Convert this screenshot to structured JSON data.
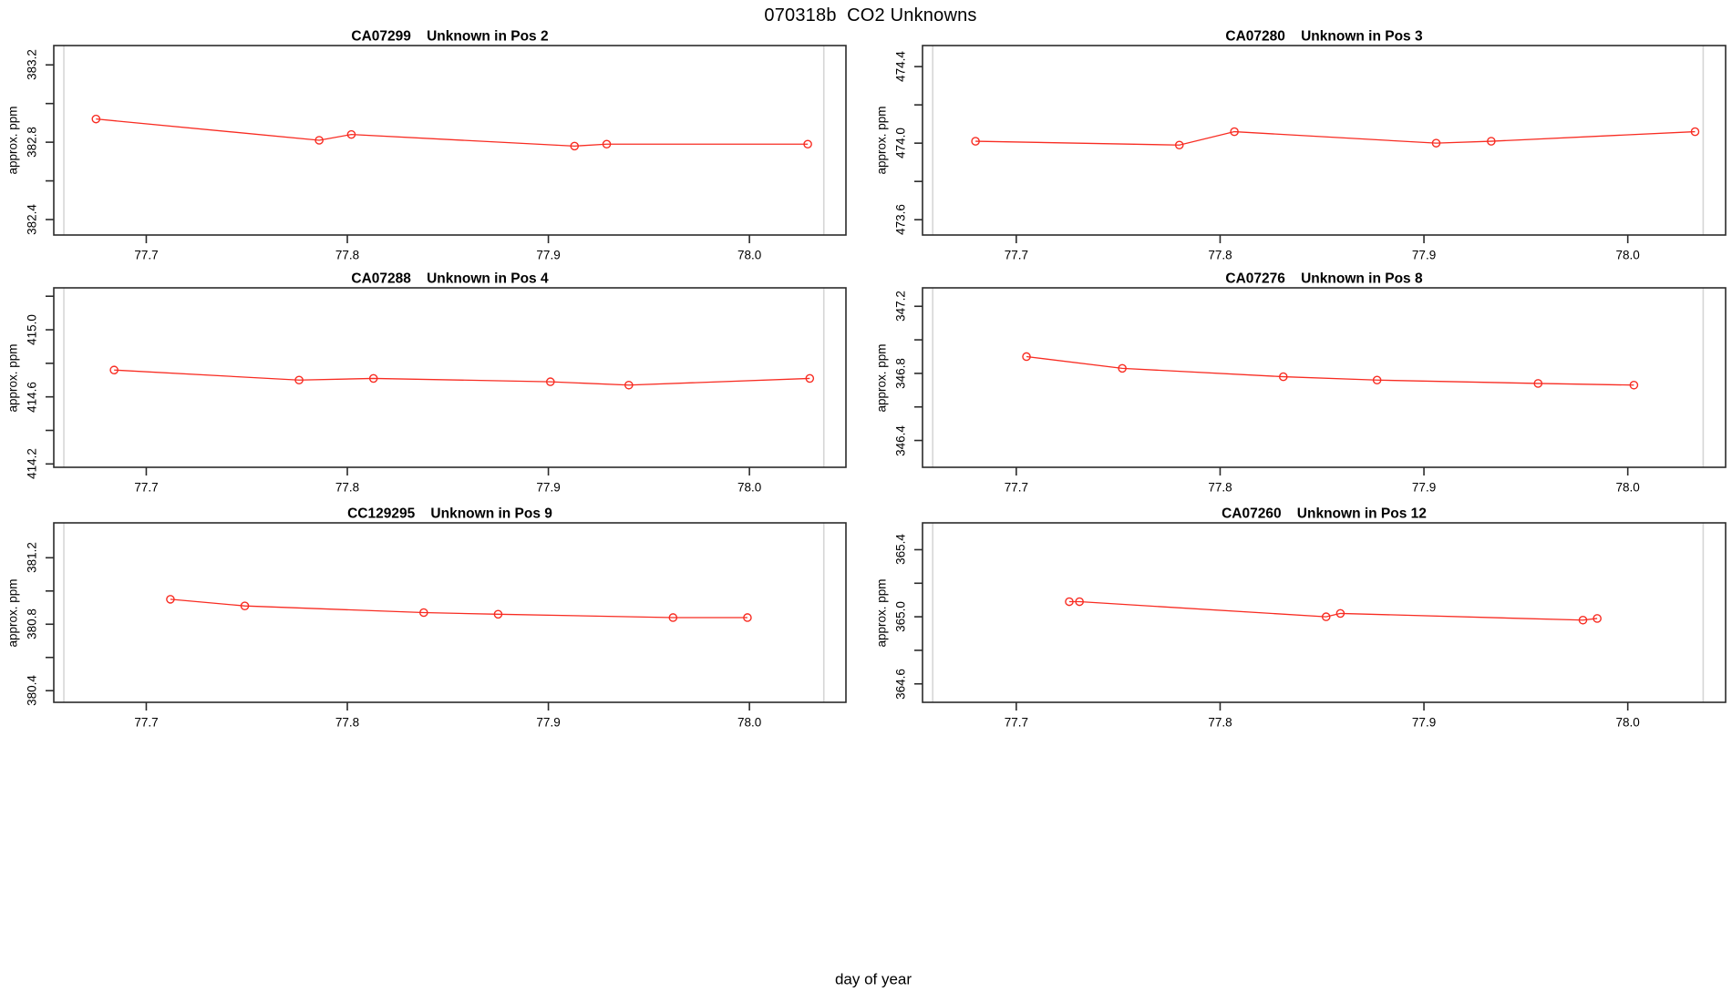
{
  "figure": {
    "title": "070318b  CO2 Unknowns",
    "xlabel": "day of year",
    "ylabel": "approx. ppm"
  },
  "style": {
    "series_color": "#f82c22",
    "guide_color": "#d6d6d6",
    "axis_color": "#2b2b2b",
    "text_color": "#000000",
    "background": "#ffffff"
  },
  "chart_data": {
    "type": "line",
    "title": "070318b  CO2 Unknowns",
    "xlabel": "day of year",
    "ylabel": "approx. ppm",
    "grid": false,
    "legend": "none",
    "marker": "open-circle",
    "xlim": [
      77.654,
      78.048
    ],
    "xticks": [
      77.7,
      77.8,
      77.9,
      78.0
    ],
    "xtick_labels": [
      "77.7",
      "77.8",
      "77.9",
      "78.0"
    ],
    "guide_x": [
      77.659,
      78.037
    ],
    "panels": [
      {
        "sample_id": "CA07299",
        "label": "Unknown in Pos 2",
        "title": "CA07299    Unknown in Pos 2",
        "ylim": [
          382.32,
          383.3
        ],
        "yticks": [
          {
            "v": 382.4,
            "label": "382.4"
          },
          {
            "v": 382.6,
            "label": ""
          },
          {
            "v": 382.8,
            "label": "382.8"
          },
          {
            "v": 383.0,
            "label": ""
          },
          {
            "v": 383.2,
            "label": "383.2"
          }
        ],
        "x": [
          77.675,
          77.786,
          77.802,
          77.913,
          77.929,
          78.029
        ],
        "y": [
          382.92,
          382.81,
          382.84,
          382.78,
          382.79,
          382.79
        ]
      },
      {
        "sample_id": "CA07280",
        "label": "Unknown in Pos 3",
        "title": "CA07280    Unknown in Pos 3",
        "ylim": [
          473.52,
          474.51
        ],
        "yticks": [
          {
            "v": 473.6,
            "label": "473.6"
          },
          {
            "v": 473.8,
            "label": ""
          },
          {
            "v": 474.0,
            "label": "474.0"
          },
          {
            "v": 474.2,
            "label": ""
          },
          {
            "v": 474.4,
            "label": "474.4"
          }
        ],
        "x": [
          77.68,
          77.78,
          77.807,
          77.906,
          77.933,
          78.033
        ],
        "y": [
          474.01,
          473.99,
          474.06,
          474.0,
          474.01,
          474.06
        ]
      },
      {
        "sample_id": "CA07288",
        "label": "Unknown in Pos 4",
        "title": "CA07288    Unknown in Pos 4",
        "ylim": [
          414.18,
          415.25
        ],
        "yticks": [
          {
            "v": 414.2,
            "label": "414.2"
          },
          {
            "v": 414.4,
            "label": ""
          },
          {
            "v": 414.6,
            "label": "414.6"
          },
          {
            "v": 414.8,
            "label": ""
          },
          {
            "v": 415.0,
            "label": "415.0"
          },
          {
            "v": 415.2,
            "label": ""
          }
        ],
        "x": [
          77.684,
          77.776,
          77.813,
          77.901,
          77.94,
          78.03
        ],
        "y": [
          414.76,
          414.7,
          414.71,
          414.69,
          414.67,
          414.71
        ]
      },
      {
        "sample_id": "CA07276",
        "label": "Unknown in Pos 8",
        "title": "CA07276    Unknown in Pos 8",
        "ylim": [
          346.24,
          347.31
        ],
        "yticks": [
          {
            "v": 346.4,
            "label": "346.4"
          },
          {
            "v": 346.6,
            "label": ""
          },
          {
            "v": 346.8,
            "label": "346.8"
          },
          {
            "v": 347.0,
            "label": ""
          },
          {
            "v": 347.2,
            "label": "347.2"
          }
        ],
        "x": [
          77.705,
          77.752,
          77.831,
          77.877,
          77.956,
          78.003
        ],
        "y": [
          346.9,
          346.83,
          346.78,
          346.76,
          346.74,
          346.73
        ]
      },
      {
        "sample_id": "CC129295",
        "label": "Unknown in Pos 9",
        "title": "CC129295    Unknown in Pos 9",
        "ylim": [
          380.33,
          381.41
        ],
        "yticks": [
          {
            "v": 380.4,
            "label": "380.4"
          },
          {
            "v": 380.6,
            "label": ""
          },
          {
            "v": 380.8,
            "label": "380.8"
          },
          {
            "v": 381.0,
            "label": ""
          },
          {
            "v": 381.2,
            "label": "381.2"
          }
        ],
        "x": [
          77.712,
          77.749,
          77.838,
          77.875,
          77.962,
          77.999
        ],
        "y": [
          380.95,
          380.91,
          380.87,
          380.86,
          380.84,
          380.84
        ]
      },
      {
        "sample_id": "CA07260",
        "label": "Unknown in Pos 12",
        "title": "CA07260    Unknown in Pos 12",
        "ylim": [
          364.49,
          365.56
        ],
        "yticks": [
          {
            "v": 364.6,
            "label": "364.6"
          },
          {
            "v": 364.8,
            "label": ""
          },
          {
            "v": 365.0,
            "label": "365.0"
          },
          {
            "v": 365.2,
            "label": ""
          },
          {
            "v": 365.4,
            "label": "365.4"
          }
        ],
        "x": [
          77.726,
          77.731,
          77.852,
          77.859,
          77.978,
          77.985
        ],
        "y": [
          365.09,
          365.09,
          365.0,
          365.02,
          364.98,
          364.99
        ]
      }
    ]
  }
}
